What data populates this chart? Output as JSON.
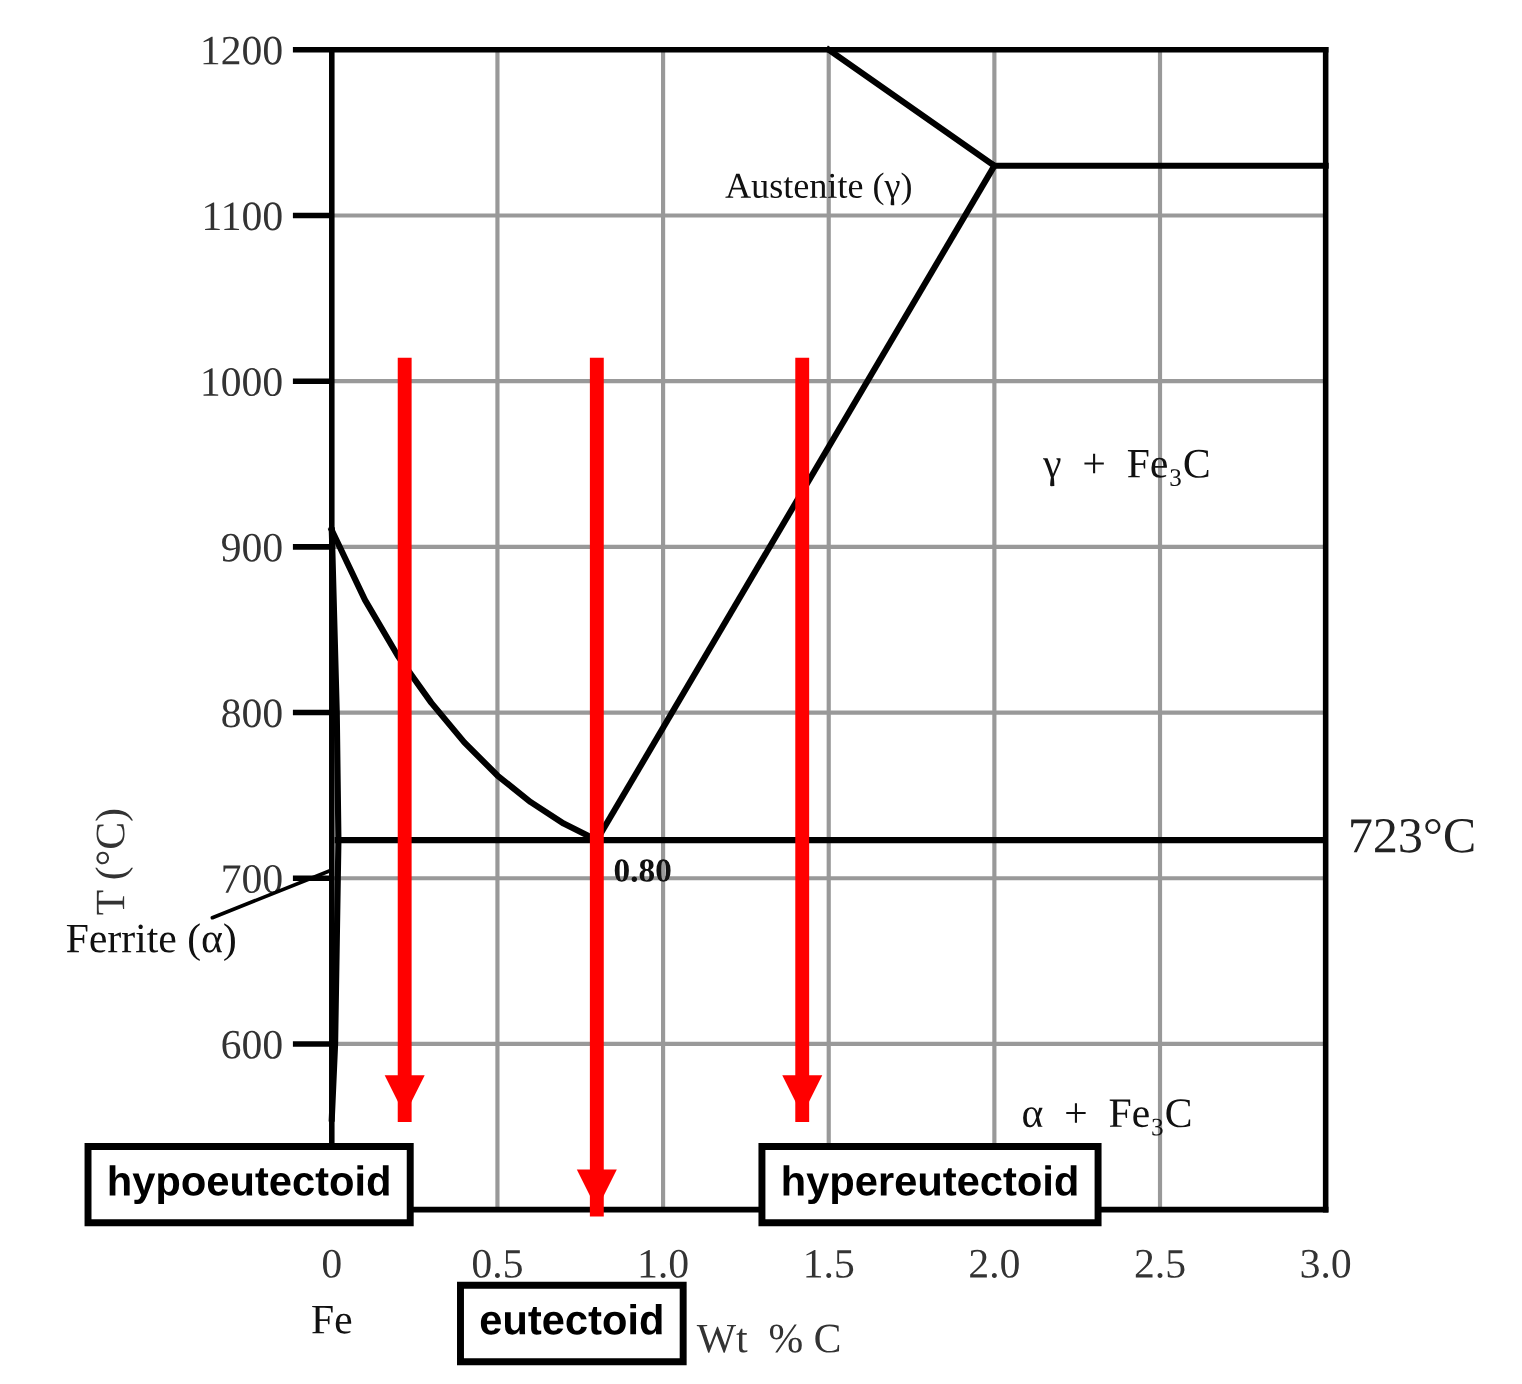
{
  "chart_data": {
    "type": "line",
    "xlabel": "Wt  % C",
    "ylabel": "T (°C)",
    "xlim": [
      0,
      3
    ],
    "ylim": [
      500,
      1200
    ],
    "xticks": [
      0,
      {
        "value": 0.5,
        "label": "0.5"
      },
      {
        "value": 1,
        "label": "1.0"
      },
      {
        "value": 1.5,
        "label": "1.5"
      },
      {
        "value": 2,
        "label": "2.0"
      },
      {
        "value": 2.5,
        "label": "2.5"
      },
      {
        "value": 3,
        "label": "3.0"
      }
    ],
    "yticks": [
      {
        "value": 500,
        "label": null
      },
      600,
      700,
      800,
      900,
      1000,
      1100,
      1200
    ],
    "grid": true,
    "marker": "none",
    "line_style": "solid",
    "series": [
      {
        "color": "#000000",
        "x": [
          0,
          0.1,
          0.2,
          0.3,
          0.4,
          0.5,
          0.6,
          0.7,
          0.8
        ],
        "values": [
          910,
          868,
          834,
          806,
          782,
          762,
          746,
          733,
          723
        ]
      },
      {
        "color": "#000000",
        "x": [
          0.8,
          2.0
        ],
        "values": [
          723,
          1130
        ]
      },
      {
        "color": "#000000",
        "x": [
          1.5,
          2.0,
          3.0
        ],
        "values": [
          1200,
          1130,
          1130
        ]
      },
      {
        "color": "#000000",
        "x": [
          0,
          0.015,
          0.02,
          0.01,
          0
        ],
        "values": [
          910,
          800,
          723,
          600,
          555
        ]
      },
      {
        "color": "#ff0000",
        "x": [
          0.22,
          0.22
        ],
        "values": [
          1010,
          557
        ]
      },
      {
        "color": "#ff0000",
        "x": [
          0.8,
          0.8
        ],
        "values": [
          1010,
          500
        ]
      },
      {
        "color": "#ff0000",
        "x": [
          1.42,
          1.42
        ],
        "values": [
          1010,
          557
        ]
      }
    ],
    "ref_lines": [
      {
        "axis": "y",
        "value": 723,
        "label": "723°C",
        "color": "#000000"
      }
    ],
    "annotations": [
      "Austenite (γ)",
      "γ  +  Fe₃C",
      "α  +  Fe₃C",
      {
        "text": "0.80",
        "x": 0.8,
        "y": 723
      },
      {
        "text": "Ferrite (α)",
        "x": 0,
        "y": 705
      },
      "Fe",
      {
        "text": "hypoeutectoid",
        "x": 0.22,
        "y": 557
      },
      {
        "text": "eutectoid",
        "x": 0.8,
        "y": 500
      },
      {
        "text": "hypereutectoid",
        "x": 1.42,
        "y": 557
      }
    ]
  }
}
